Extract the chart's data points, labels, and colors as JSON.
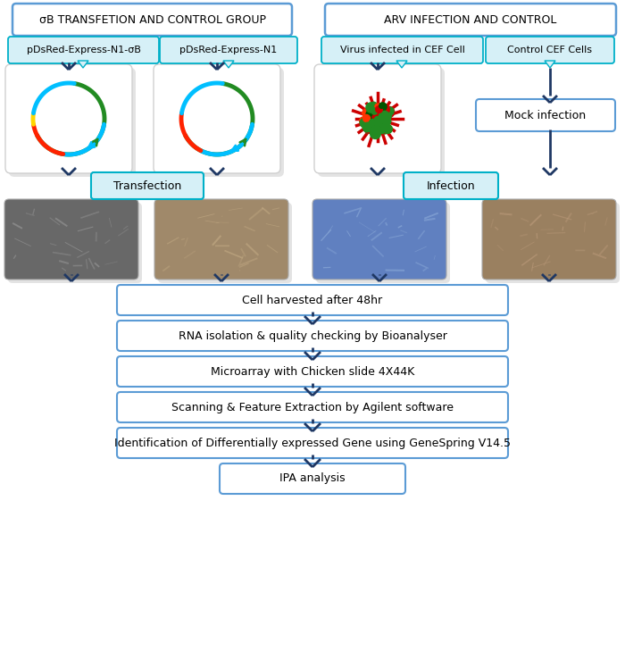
{
  "background_color": "#ffffff",
  "title_left": "σB TRANSFETION AND CONTROL GROUP",
  "title_right": "ARV INFECTION AND CONTROL",
  "label_1": "pDsRed-Express-N1-σB",
  "label_2": "pDsRed-Express-N1",
  "label_3": "Virus infected in CEF Cell",
  "label_4": "Control CEF Cells",
  "transfection_label": "Transfection",
  "infection_label": "Infection",
  "mock_label": "Mock infection",
  "flow_boxes": [
    "Cell harvested after 48hr",
    "RNA isolation & quality checking by Bioanalyser",
    "Microarray with Chicken slide 4X44K",
    "Scanning & Feature Extraction by Agilent software",
    "Identification of Differentially expressed Gene using GeneSpring V14.5",
    "IPA analysis"
  ],
  "box_border_color": "#5B9BD5",
  "arrow_color": "#1F3864",
  "cyan_fill": "#D6F0F7",
  "cyan_border": "#00B0C8"
}
